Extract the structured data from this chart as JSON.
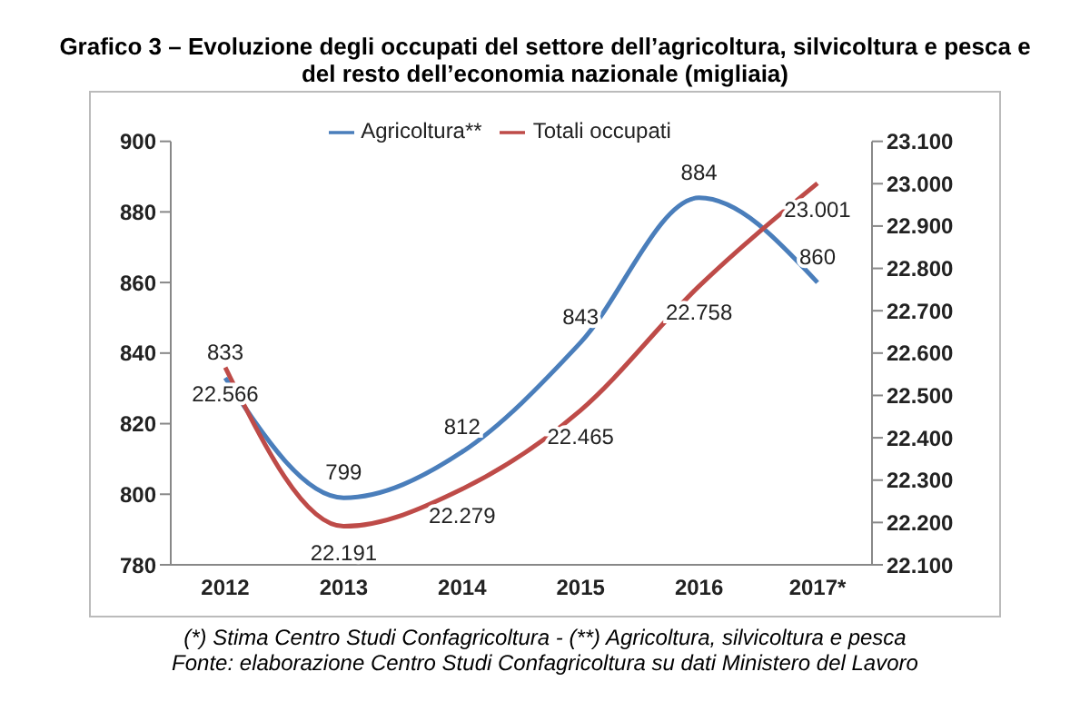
{
  "chart_data": {
    "type": "line",
    "title": "Grafico 3 – Evoluzione degli occupati del settore dell’agricoltura, silvicoltura e pesca e del resto dell’economia nazionale (migliaia)",
    "categories": [
      "2012",
      "2013",
      "2014",
      "2015",
      "2016",
      "2017*"
    ],
    "series": [
      {
        "name": "Agricoltura**",
        "color": "#4a7ebb",
        "values": [
          833,
          799,
          812,
          843,
          884,
          860
        ],
        "value_labels": [
          "833",
          "799",
          "812",
          "843",
          "884",
          "860"
        ]
      },
      {
        "name": "Totali occupati",
        "color": "#be4b48",
        "axis": "y2",
        "values": [
          22566,
          22191,
          22279,
          22465,
          22758,
          23001
        ],
        "value_labels": [
          "22.566",
          "22.191",
          "22.279",
          "22.465",
          "22.758",
          "23.001"
        ]
      }
    ],
    "ylim": [
      780,
      900
    ],
    "yticks": [
      780,
      800,
      820,
      840,
      860,
      880,
      900
    ],
    "y2lim": [
      22100,
      23100
    ],
    "y2ticks": [
      {
        "value": 22100,
        "label": "22.100"
      },
      {
        "value": 22200,
        "label": "22.200"
      },
      {
        "value": 22300,
        "label": "22.300"
      },
      {
        "value": 22400,
        "label": "22.400"
      },
      {
        "value": 22500,
        "label": "22.500"
      },
      {
        "value": 22600,
        "label": "22.600"
      },
      {
        "value": 22700,
        "label": "22.700"
      },
      {
        "value": 22800,
        "label": "22.800"
      },
      {
        "value": 22900,
        "label": "22.900"
      },
      {
        "value": 23000,
        "label": "23.000"
      },
      {
        "value": 23100,
        "label": "23.100"
      }
    ],
    "legend": "top",
    "marker": "none",
    "line_style": "solid",
    "annotations": [
      "(*) Stima Centro Studi Confagricoltura - (**) Agricoltura, silvicoltura e pesca",
      "Fonte: elaborazione Centro Studi Confagricoltura su dati Ministero del Lavoro"
    ]
  }
}
